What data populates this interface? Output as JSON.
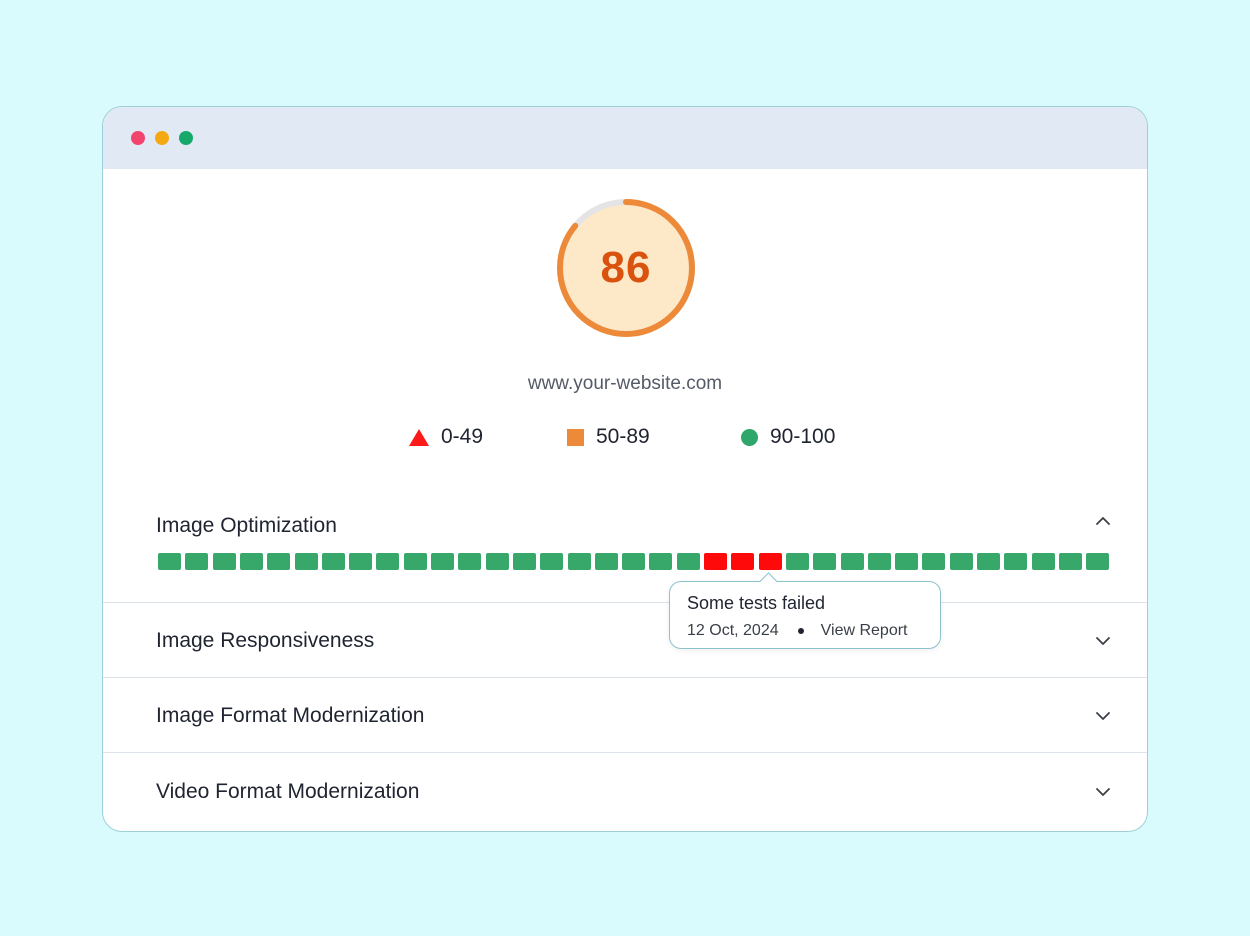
{
  "window": {
    "dots": [
      "#f2456e",
      "#f4a912",
      "#16a96a"
    ]
  },
  "score": {
    "value": "86",
    "fraction": 0.86,
    "color": "#ec8a3a",
    "fill": "#fde8c7",
    "text_color": "#d9530f"
  },
  "site": {
    "url": "www.your-website.com"
  },
  "legend": [
    {
      "icon": "triangle",
      "label": "0-49",
      "color": "#ff1a1a"
    },
    {
      "icon": "square",
      "label": "50-89",
      "color": "#ec8a3a"
    },
    {
      "icon": "circle",
      "label": "90-100",
      "color": "#2fa76a"
    }
  ],
  "sections": [
    {
      "title": "Image Optimization",
      "expanded": true,
      "chevron": "chevron-up-icon"
    },
    {
      "title": "Image Responsiveness",
      "expanded": false,
      "chevron": "chevron-down-icon"
    },
    {
      "title": "Image Format Modernization",
      "expanded": false,
      "chevron": "chevron-down-icon"
    },
    {
      "title": "Video Format Modernization",
      "expanded": false,
      "chevron": "chevron-down-icon"
    }
  ],
  "test_results": {
    "colors": {
      "pass": "#38a76a",
      "fail": "#ff0a0a"
    },
    "statuses": [
      "pass",
      "pass",
      "pass",
      "pass",
      "pass",
      "pass",
      "pass",
      "pass",
      "pass",
      "pass",
      "pass",
      "pass",
      "pass",
      "pass",
      "pass",
      "pass",
      "pass",
      "pass",
      "pass",
      "pass",
      "fail",
      "fail",
      "fail",
      "pass",
      "pass",
      "pass",
      "pass",
      "pass",
      "pass",
      "pass",
      "pass",
      "pass",
      "pass",
      "pass",
      "pass"
    ]
  },
  "tooltip": {
    "title": "Some tests failed",
    "date": "12 Oct, 2024",
    "link": "View Report"
  }
}
